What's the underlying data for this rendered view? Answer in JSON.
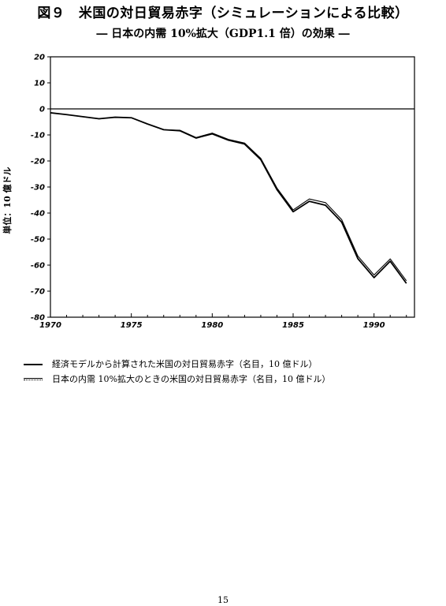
{
  "title": "図９　米国の対日貿易赤字（シミュレーションによる比較）",
  "subtitle": "― 日本の内需 10%拡大（GDP1.1 倍）の効果 ―",
  "page_number": "15",
  "chart_data": {
    "type": "line",
    "ylabel": "単位：10 億ドル",
    "xlabel": "",
    "xlim": [
      1970,
      1992.5
    ],
    "ylim": [
      -80,
      20
    ],
    "x_ticks": [
      1970,
      1975,
      1980,
      1985,
      1990
    ],
    "x_tick_labels": [
      "1970",
      "1975",
      "1980",
      "1985",
      "1990"
    ],
    "y_ticks": [
      20,
      10,
      0,
      -10,
      -20,
      -30,
      -40,
      -50,
      -60,
      -70,
      -80
    ],
    "y_tick_labels": [
      "20",
      "10",
      "0",
      "-10",
      "-20",
      "-30",
      "-40",
      "-50",
      "-60",
      "-70",
      "-80"
    ],
    "grid": false,
    "zero_line": true,
    "x": [
      1970,
      1971,
      1972,
      1973,
      1974,
      1975,
      1976,
      1977,
      1978,
      1979,
      1980,
      1981,
      1982,
      1983,
      1984,
      1985,
      1986,
      1987,
      1988,
      1989,
      1990,
      1991,
      1992
    ],
    "series": [
      {
        "name": "経済モデルから計算された米国の対日貿易赤字（名目，10 億ドル）",
        "style": "solid",
        "values": [
          -1.5,
          -2.2,
          -3.0,
          -3.8,
          -3.2,
          -3.4,
          -5.8,
          -8.0,
          -8.4,
          -11.2,
          -9.6,
          -12.0,
          -13.5,
          -19.5,
          -31.0,
          -39.5,
          -35.5,
          -37.0,
          -43.5,
          -57.5,
          -64.8,
          -58.5,
          -67.0
        ]
      },
      {
        "name": "日本の内需 10%拡大のときの米国の対日貿易赤字（名目，10 億ドル）",
        "style": "double",
        "values": [
          -1.5,
          -2.2,
          -3.0,
          -3.8,
          -3.2,
          -3.4,
          -5.8,
          -8.0,
          -8.2,
          -11.0,
          -9.3,
          -11.7,
          -13.1,
          -19.0,
          -30.4,
          -38.8,
          -34.6,
          -36.0,
          -42.5,
          -56.5,
          -63.8,
          -57.6,
          -66.0
        ]
      }
    ],
    "colors": {
      "line": "#000000",
      "axis": "#000000"
    }
  }
}
